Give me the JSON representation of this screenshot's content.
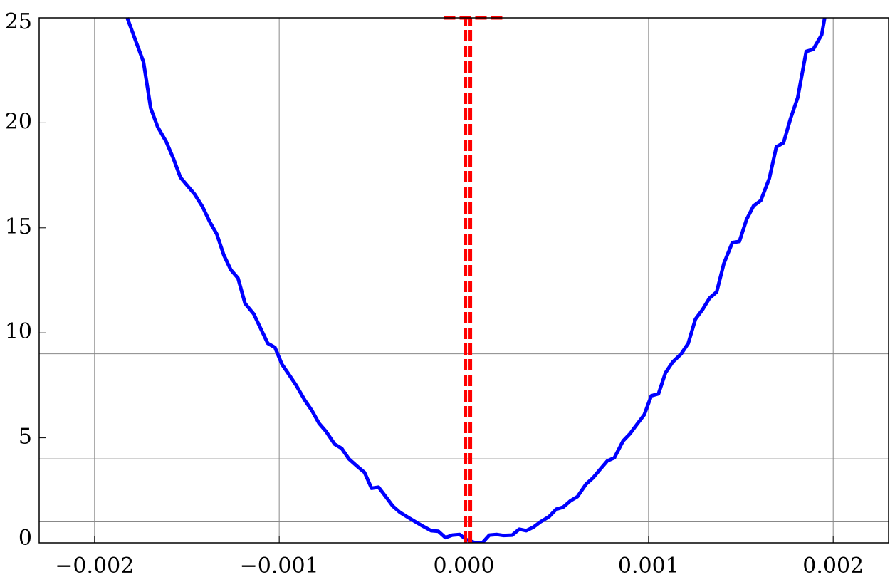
{
  "chart_data": {
    "type": "line",
    "xlim": [
      -0.0023,
      0.0023
    ],
    "xticks": [
      {
        "value": -0.002,
        "label": "−0.002"
      },
      {
        "value": -0.001,
        "label": "−0.001"
      },
      {
        "value": 0,
        "label": "0.000"
      },
      0.001,
      0.002
    ],
    "ylim": [
      0,
      25
    ],
    "yticks": [
      0,
      5,
      10,
      15,
      20,
      25
    ],
    "grid": true,
    "ygrid": [
      1,
      4,
      9
    ],
    "series": [
      {
        "color": "#0000ff",
        "dashed": false,
        "x": [
          -0.001823,
          -0.001773,
          -0.001735,
          -0.001696,
          -0.001658,
          -0.001612,
          -0.001573,
          -0.001535,
          -0.001458,
          -0.001415,
          -0.001377,
          -0.001338,
          -0.0013,
          -0.001262,
          -0.001223,
          -0.001185,
          -0.001138,
          -0.0011,
          -0.001062,
          -0.001023,
          -0.000985,
          -0.000946,
          -0.000908,
          -0.000862,
          -0.000823,
          -0.000785,
          -0.000746,
          -0.0007,
          -0.000662,
          -0.000623,
          -0.000585,
          -0.000538,
          -0.0005,
          -0.000462,
          -0.000423,
          -0.000385,
          -0.000346,
          -0.0003,
          -0.000262,
          -0.000223,
          -0.000177,
          -0.000138,
          -0.0001,
          -6.2e-05,
          -2.3e-05,
          1.5e-05,
          6.2e-05,
          0.0001,
          0.000138,
          0.000177,
          0.000215,
          0.000262,
          0.0003,
          0.000338,
          0.000377,
          0.000415,
          0.000462,
          0.0005,
          0.000538,
          0.000577,
          0.000615,
          0.000662,
          0.0007,
          0.000738,
          0.000777,
          0.000815,
          0.000862,
          0.0009,
          0.000938,
          0.000977,
          0.001015,
          0.001054,
          0.001092,
          0.00113,
          0.001177,
          0.001215,
          0.001254,
          0.001292,
          0.00133,
          0.001369,
          0.001408,
          0.001454,
          0.001492,
          0.001531,
          0.001569,
          0.001608,
          0.001654,
          0.001692,
          0.001731,
          0.001769,
          0.001808,
          0.001854,
          0.001892,
          0.001938,
          0.001954
        ],
        "values": [
          25,
          23.8,
          22.9,
          20.7,
          19.8,
          19.1,
          18.3,
          17.4,
          16.6,
          16.0,
          15.3,
          14.7,
          13.7,
          13.0,
          12.6,
          11.4,
          10.9,
          10.2,
          9.5,
          9.3,
          8.5,
          8.0,
          7.5,
          6.8,
          6.3,
          5.7,
          5.3,
          4.7,
          4.5,
          4.0,
          3.7,
          3.35,
          2.6,
          2.65,
          2.2,
          1.75,
          1.45,
          1.2,
          1.0,
          0.8,
          0.58,
          0.55,
          0.25,
          0.37,
          0.4,
          0.15,
          0,
          0,
          0.37,
          0.4,
          0.35,
          0.37,
          0.65,
          0.58,
          0.75,
          1.0,
          1.25,
          1.6,
          1.7,
          2.0,
          2.2,
          2.8,
          3.1,
          3.5,
          3.9,
          4.05,
          4.85,
          5.2,
          5.65,
          6.1,
          7.0,
          7.1,
          8.1,
          8.6,
          9.0,
          9.5,
          10.65,
          11.1,
          11.65,
          11.95,
          13.3,
          14.3,
          14.35,
          15.4,
          16.05,
          16.3,
          17.35,
          18.85,
          19.05,
          20.2,
          21.2,
          23.4,
          23.5,
          24.2,
          25
        ]
      },
      {
        "color": "#ff0000",
        "dashed": true,
        "x": [
          8e-06,
          8e-06
        ],
        "values": [
          0,
          25
        ]
      },
      {
        "color": "#ff0000",
        "dashed": true,
        "x": [
          3.5e-05,
          3.5e-05
        ],
        "values": [
          0,
          25
        ]
      },
      {
        "color": "#ff0000",
        "dashed": true,
        "x": [
          -0.000108,
          0.000208
        ],
        "values": [
          25,
          25
        ]
      }
    ]
  }
}
